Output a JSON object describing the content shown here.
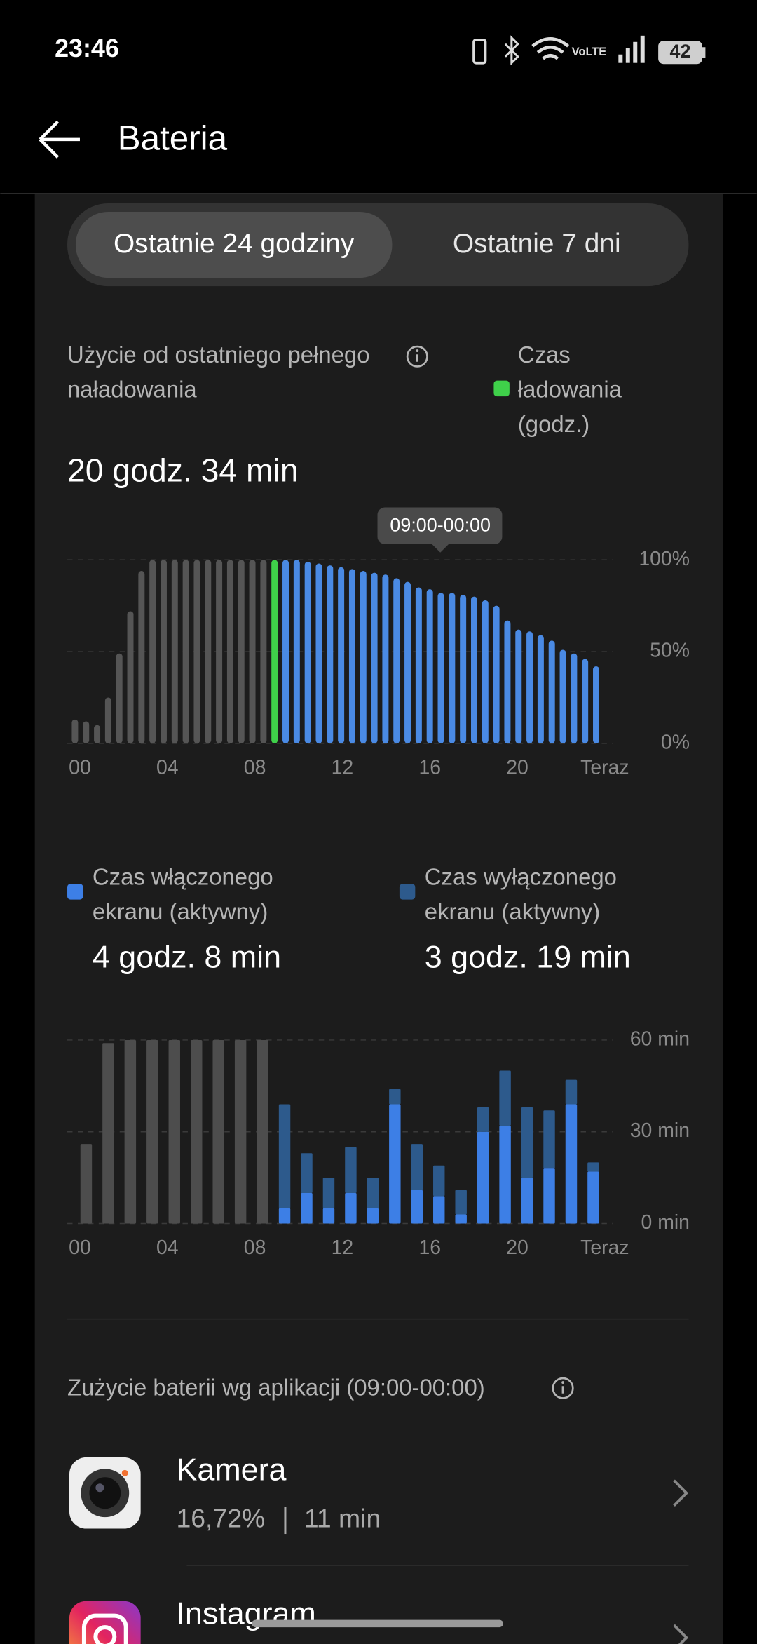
{
  "status_bar": {
    "time": "23:46",
    "battery": "42"
  },
  "header": {
    "title": "Bateria"
  },
  "tabs": [
    "Ostatnie 24 godziny",
    "Ostatnie 7 dni"
  ],
  "usage": {
    "label": "Użycie od ostatniego pełnego naładowania",
    "value": "20 godz. 34 min"
  },
  "battery_chart": {
    "type": "bar",
    "grid": true,
    "ylim": [
      0,
      100
    ],
    "yticks": [
      {
        "value": 0,
        "label": "0%"
      },
      {
        "value": 50,
        "label": "50%"
      },
      {
        "value": 100,
        "label": "100%"
      }
    ],
    "x_labels": [
      "00",
      "04",
      "08",
      "12",
      "16",
      "20",
      "Teraz"
    ],
    "tooltip": "09:00-00:00",
    "series": [
      {
        "color": "#555555",
        "values": [
          13,
          12,
          10,
          25,
          49,
          72,
          94,
          100,
          100,
          100,
          100,
          100,
          100,
          100,
          100,
          100,
          100,
          100,
          null,
          null,
          null,
          null,
          null,
          null,
          null,
          null,
          null,
          null,
          null,
          null,
          null,
          null,
          null,
          null,
          null,
          null,
          null,
          null,
          null,
          null,
          null,
          null,
          null,
          null,
          null,
          null,
          null,
          null
        ]
      },
      {
        "name": "Czas ładowania (godz.)",
        "color": "#3fd04a",
        "values": [
          null,
          null,
          null,
          null,
          null,
          null,
          null,
          null,
          null,
          null,
          null,
          null,
          null,
          null,
          null,
          null,
          null,
          null,
          100,
          null,
          null,
          null,
          null,
          null,
          null,
          null,
          null,
          null,
          null,
          null,
          null,
          null,
          null,
          null,
          null,
          null,
          null,
          null,
          null,
          null,
          null,
          null,
          null,
          null,
          null,
          null,
          null,
          null
        ]
      },
      {
        "color": "#4a8ae4",
        "values": [
          null,
          null,
          null,
          null,
          null,
          null,
          null,
          null,
          null,
          null,
          null,
          null,
          null,
          null,
          null,
          null,
          null,
          null,
          null,
          100,
          100,
          99,
          98,
          97,
          96,
          95,
          94,
          93,
          92,
          90,
          88,
          85,
          84,
          82,
          82,
          81,
          80,
          78,
          75,
          67,
          62,
          61,
          59,
          56,
          51,
          49,
          46,
          42
        ]
      }
    ]
  },
  "screen_chart": {
    "type": "stacked_bar",
    "grid": true,
    "ylim": [
      0,
      60
    ],
    "yticks": [
      {
        "value": 0,
        "label": "0 min"
      },
      {
        "value": 30,
        "label": "30 min"
      },
      {
        "value": 60,
        "label": "60 min"
      }
    ],
    "x_labels": [
      "00",
      "04",
      "08",
      "12",
      "16",
      "20",
      "Teraz"
    ],
    "series": [
      {
        "color": "#4d4d4d",
        "values": [
          26,
          59,
          60,
          60,
          60,
          60,
          60,
          60,
          60,
          null,
          null,
          null,
          null,
          null,
          null,
          null,
          null,
          null,
          null,
          null,
          null,
          null,
          null,
          null
        ]
      },
      {
        "name": "Czas włączonego ekranu (aktywny)",
        "total": "4 godz. 8 min",
        "color": "#3d7fe6",
        "values": [
          null,
          null,
          null,
          null,
          null,
          null,
          null,
          null,
          null,
          5,
          10,
          5,
          10,
          5,
          39,
          11,
          9,
          3,
          30,
          32,
          15,
          18,
          39,
          17
        ]
      },
      {
        "name": "Czas wyłączonego ekranu (aktywny)",
        "total": "3 godz. 19 min",
        "color": "#2d5a8c",
        "values": [
          null,
          null,
          null,
          null,
          null,
          null,
          null,
          null,
          null,
          34,
          13,
          10,
          15,
          10,
          5,
          15,
          10,
          8,
          8,
          18,
          23,
          19,
          8,
          3
        ]
      }
    ]
  },
  "apps": {
    "title": "Zużycie baterii wg aplikacji (09:00-00:00)",
    "items": [
      {
        "name": "Kamera",
        "percent": "16,72%",
        "time": "11 min"
      },
      {
        "name": "Instagram"
      }
    ]
  }
}
